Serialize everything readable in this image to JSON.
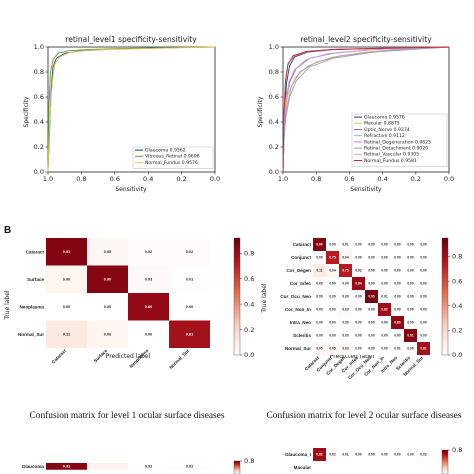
{
  "section_label": "B",
  "chart_data": [
    {
      "type": "line",
      "title": "retinal_level1 specificity-sensitivity",
      "xlabel": "Sensitivity",
      "ylabel": "Specificity",
      "xlim": [
        1.0,
        0.0
      ],
      "ylim": [
        0.0,
        1.0
      ],
      "xticks": [
        "1.0",
        "0.8",
        "0.6",
        "0.4",
        "0.2",
        "0.0"
      ],
      "yticks": [
        "0.0",
        "0.2",
        "0.4",
        "0.6",
        "0.8",
        "1.0"
      ],
      "legend_position": "lower-right",
      "series": [
        {
          "name": "Glaucoma 0.9562",
          "color": "#2b3a67",
          "points": [
            [
              1.0,
              0.0
            ],
            [
              0.99,
              0.35
            ],
            [
              0.98,
              0.68
            ],
            [
              0.97,
              0.84
            ],
            [
              0.95,
              0.91
            ],
            [
              0.9,
              0.95
            ],
            [
              0.8,
              0.97
            ],
            [
              0.6,
              0.985
            ],
            [
              0.4,
              0.99
            ],
            [
              0.2,
              0.995
            ],
            [
              0.0,
              1.0
            ]
          ]
        },
        {
          "name": "Vitreous_Retinal 0.9698",
          "color": "#5a9a3c",
          "points": [
            [
              1.0,
              0.0
            ],
            [
              0.995,
              0.5
            ],
            [
              0.985,
              0.8
            ],
            [
              0.97,
              0.9
            ],
            [
              0.94,
              0.95
            ],
            [
              0.88,
              0.97
            ],
            [
              0.75,
              0.98
            ],
            [
              0.5,
              0.99
            ],
            [
              0.25,
              0.995
            ],
            [
              0.0,
              1.0
            ]
          ]
        },
        {
          "name": "Normal_Fundus 0.9576",
          "color": "#e6c455",
          "points": [
            [
              1.0,
              0.0
            ],
            [
              0.99,
              0.4
            ],
            [
              0.975,
              0.72
            ],
            [
              0.96,
              0.86
            ],
            [
              0.93,
              0.92
            ],
            [
              0.87,
              0.955
            ],
            [
              0.75,
              0.975
            ],
            [
              0.5,
              0.985
            ],
            [
              0.25,
              0.993
            ],
            [
              0.0,
              1.0
            ]
          ]
        }
      ]
    },
    {
      "type": "line",
      "title": "retinal_level2 specificity-sensitivity",
      "xlabel": "Sensitivity",
      "ylabel": "Specificity",
      "xlim": [
        1.0,
        0.0
      ],
      "ylim": [
        0.0,
        1.0
      ],
      "xticks": [
        "1.0",
        "0.8",
        "0.6",
        "0.4",
        "0.2",
        "0.0"
      ],
      "yticks": [
        "0.0",
        "0.2",
        "0.4",
        "0.6",
        "0.8",
        "1.0"
      ],
      "legend_position": "lower-right",
      "series": [
        {
          "name": "Glaucoma 0.9576",
          "color": "#2b3a67",
          "points": [
            [
              1.0,
              0.0
            ],
            [
              0.99,
              0.4
            ],
            [
              0.98,
              0.7
            ],
            [
              0.96,
              0.85
            ],
            [
              0.93,
              0.92
            ],
            [
              0.85,
              0.96
            ],
            [
              0.7,
              0.98
            ],
            [
              0.4,
              0.99
            ],
            [
              0.0,
              1.0
            ]
          ]
        },
        {
          "name": "Macular 0.8875",
          "color": "#e6c455",
          "points": [
            [
              1.0,
              0.0
            ],
            [
              0.995,
              0.2
            ],
            [
              0.99,
              0.45
            ],
            [
              0.97,
              0.62
            ],
            [
              0.93,
              0.75
            ],
            [
              0.85,
              0.85
            ],
            [
              0.7,
              0.92
            ],
            [
              0.5,
              0.96
            ],
            [
              0.25,
              0.985
            ],
            [
              0.0,
              1.0
            ]
          ]
        },
        {
          "name": "Optic_Nerve 0.9374",
          "color": "#7b6fd0",
          "points": [
            [
              1.0,
              0.0
            ],
            [
              0.995,
              0.3
            ],
            [
              0.985,
              0.55
            ],
            [
              0.96,
              0.72
            ],
            [
              0.92,
              0.83
            ],
            [
              0.84,
              0.91
            ],
            [
              0.7,
              0.95
            ],
            [
              0.45,
              0.98
            ],
            [
              0.0,
              1.0
            ]
          ]
        },
        {
          "name": "Refractive 0.9112",
          "color": "#a6a0d8",
          "points": [
            [
              1.0,
              0.0
            ],
            [
              0.995,
              0.25
            ],
            [
              0.98,
              0.5
            ],
            [
              0.95,
              0.68
            ],
            [
              0.9,
              0.8
            ],
            [
              0.8,
              0.88
            ],
            [
              0.65,
              0.93
            ],
            [
              0.4,
              0.97
            ],
            [
              0.0,
              1.0
            ]
          ]
        },
        {
          "name": "Retinal_Degeneration 0.9625",
          "color": "#c97fc0",
          "points": [
            [
              1.0,
              0.0
            ],
            [
              0.995,
              0.45
            ],
            [
              0.985,
              0.74
            ],
            [
              0.97,
              0.87
            ],
            [
              0.93,
              0.93
            ],
            [
              0.85,
              0.965
            ],
            [
              0.7,
              0.98
            ],
            [
              0.4,
              0.992
            ],
            [
              0.0,
              1.0
            ]
          ]
        },
        {
          "name": "Retinal_Detachment 0.9020",
          "color": "#9aa0b0",
          "points": [
            [
              1.0,
              0.0
            ],
            [
              0.995,
              0.22
            ],
            [
              0.985,
              0.42
            ],
            [
              0.96,
              0.6
            ],
            [
              0.92,
              0.73
            ],
            [
              0.84,
              0.84
            ],
            [
              0.7,
              0.91
            ],
            [
              0.45,
              0.96
            ],
            [
              0.0,
              1.0
            ]
          ]
        },
        {
          "name": "Retinal_Vascular 0.9305",
          "color": "#d9a2c9",
          "points": [
            [
              1.0,
              0.0
            ],
            [
              0.995,
              0.3
            ],
            [
              0.985,
              0.55
            ],
            [
              0.965,
              0.72
            ],
            [
              0.93,
              0.82
            ],
            [
              0.86,
              0.9
            ],
            [
              0.72,
              0.95
            ],
            [
              0.45,
              0.98
            ],
            [
              0.0,
              1.0
            ]
          ]
        },
        {
          "name": "Normal_Fundus 0.9581",
          "color": "#c1272d",
          "points": [
            [
              1.0,
              0.0
            ],
            [
              0.995,
              0.42
            ],
            [
              0.985,
              0.72
            ],
            [
              0.97,
              0.86
            ],
            [
              0.94,
              0.93
            ],
            [
              0.86,
              0.965
            ],
            [
              0.7,
              0.98
            ],
            [
              0.4,
              0.99
            ],
            [
              0.0,
              1.0
            ]
          ]
        }
      ]
    },
    {
      "type": "heatmap",
      "caption": "Confusion matrix for level 1 ocular surface diseases",
      "xlabel": "Predicted label",
      "ylabel": "True label",
      "labels": [
        "Cataract",
        "Surface",
        "Neoplasma",
        "Normal_Sur"
      ],
      "colorbar_ticks": [
        "0.0",
        "0.2",
        "0.4",
        "0.6",
        "0.8"
      ],
      "values": [
        [
          "0.91",
          "0.05",
          "0.02",
          "0.02"
        ],
        [
          "0.06",
          "0.90",
          "0.03",
          "0.01"
        ],
        [
          "0.00",
          "0.00",
          "0.86",
          "0.00"
        ],
        [
          "0.12",
          "0.06",
          "0.00",
          "0.81"
        ]
      ]
    },
    {
      "type": "heatmap",
      "caption": "Confusion matrix for level 2 ocular surface diseases",
      "xlabel": "Predicted label",
      "ylabel": "True label",
      "labels": [
        "Cataract",
        "Conjunct",
        "Cor_Degen",
        "Cor_Infec",
        "Cor_Ocu_Neo",
        "Cor_Non_In",
        "Intra_Neo",
        "Scleritis",
        "Normal_Sur"
      ],
      "colorbar_ticks": [
        "0.0",
        "0.2",
        "0.4",
        "0.6",
        "0.8"
      ],
      "values": [
        [
          "0.90",
          "0.00",
          "0.01",
          "0.00",
          "0.00",
          "0.00",
          "0.00",
          "0.00",
          "0.00"
        ],
        [
          "0.00",
          "0.75",
          "0.04",
          "0.00",
          "0.00",
          "0.00",
          "0.00",
          "0.00",
          "0.00"
        ],
        [
          "0.11",
          "0.04",
          "0.75",
          "0.02",
          "0.00",
          "0.00",
          "0.00",
          "0.00",
          "0.00"
        ],
        [
          "0.03",
          "0.00",
          "0.00",
          "0.84",
          "0.00",
          "0.00",
          "0.00",
          "0.00",
          "0.00"
        ],
        [
          "0.00",
          "0.00",
          "0.00",
          "0.00",
          "0.95",
          "0.01",
          "0.00",
          "0.00",
          "0.00"
        ],
        [
          "0.00",
          "0.00",
          "0.03",
          "0.00",
          "0.00",
          "0.82",
          "0.00",
          "0.00",
          "0.00"
        ],
        [
          "0.00",
          "0.00",
          "0.00",
          "0.00",
          "0.00",
          "0.00",
          "0.86",
          "0.00",
          "0.00"
        ],
        [
          "0.00",
          "0.00",
          "0.00",
          "0.00",
          "0.00",
          "0.00",
          "0.00",
          "0.91",
          "0.00"
        ],
        [
          "0.05",
          "0.05",
          "0.03",
          "0.00",
          "0.00",
          "0.00",
          "0.01",
          "0.00",
          "0.81"
        ]
      ]
    },
    {
      "type": "heatmap",
      "partial": true,
      "labels": [
        "Glaucoma"
      ],
      "colorbar_ticks": [
        "0.8"
      ],
      "values": [
        [
          "0.91",
          "",
          "0.01",
          "0.02"
        ]
      ]
    },
    {
      "type": "heatmap",
      "partial": true,
      "labels": [
        "Glaucoma_I",
        "Macular"
      ],
      "colorbar_ticks": [
        "0.8"
      ],
      "values": [
        [
          "0.82",
          "0.02",
          "0.01",
          "0.00",
          "0.00",
          "0.00",
          "0.00",
          "0.00",
          "0.02"
        ]
      ]
    }
  ]
}
